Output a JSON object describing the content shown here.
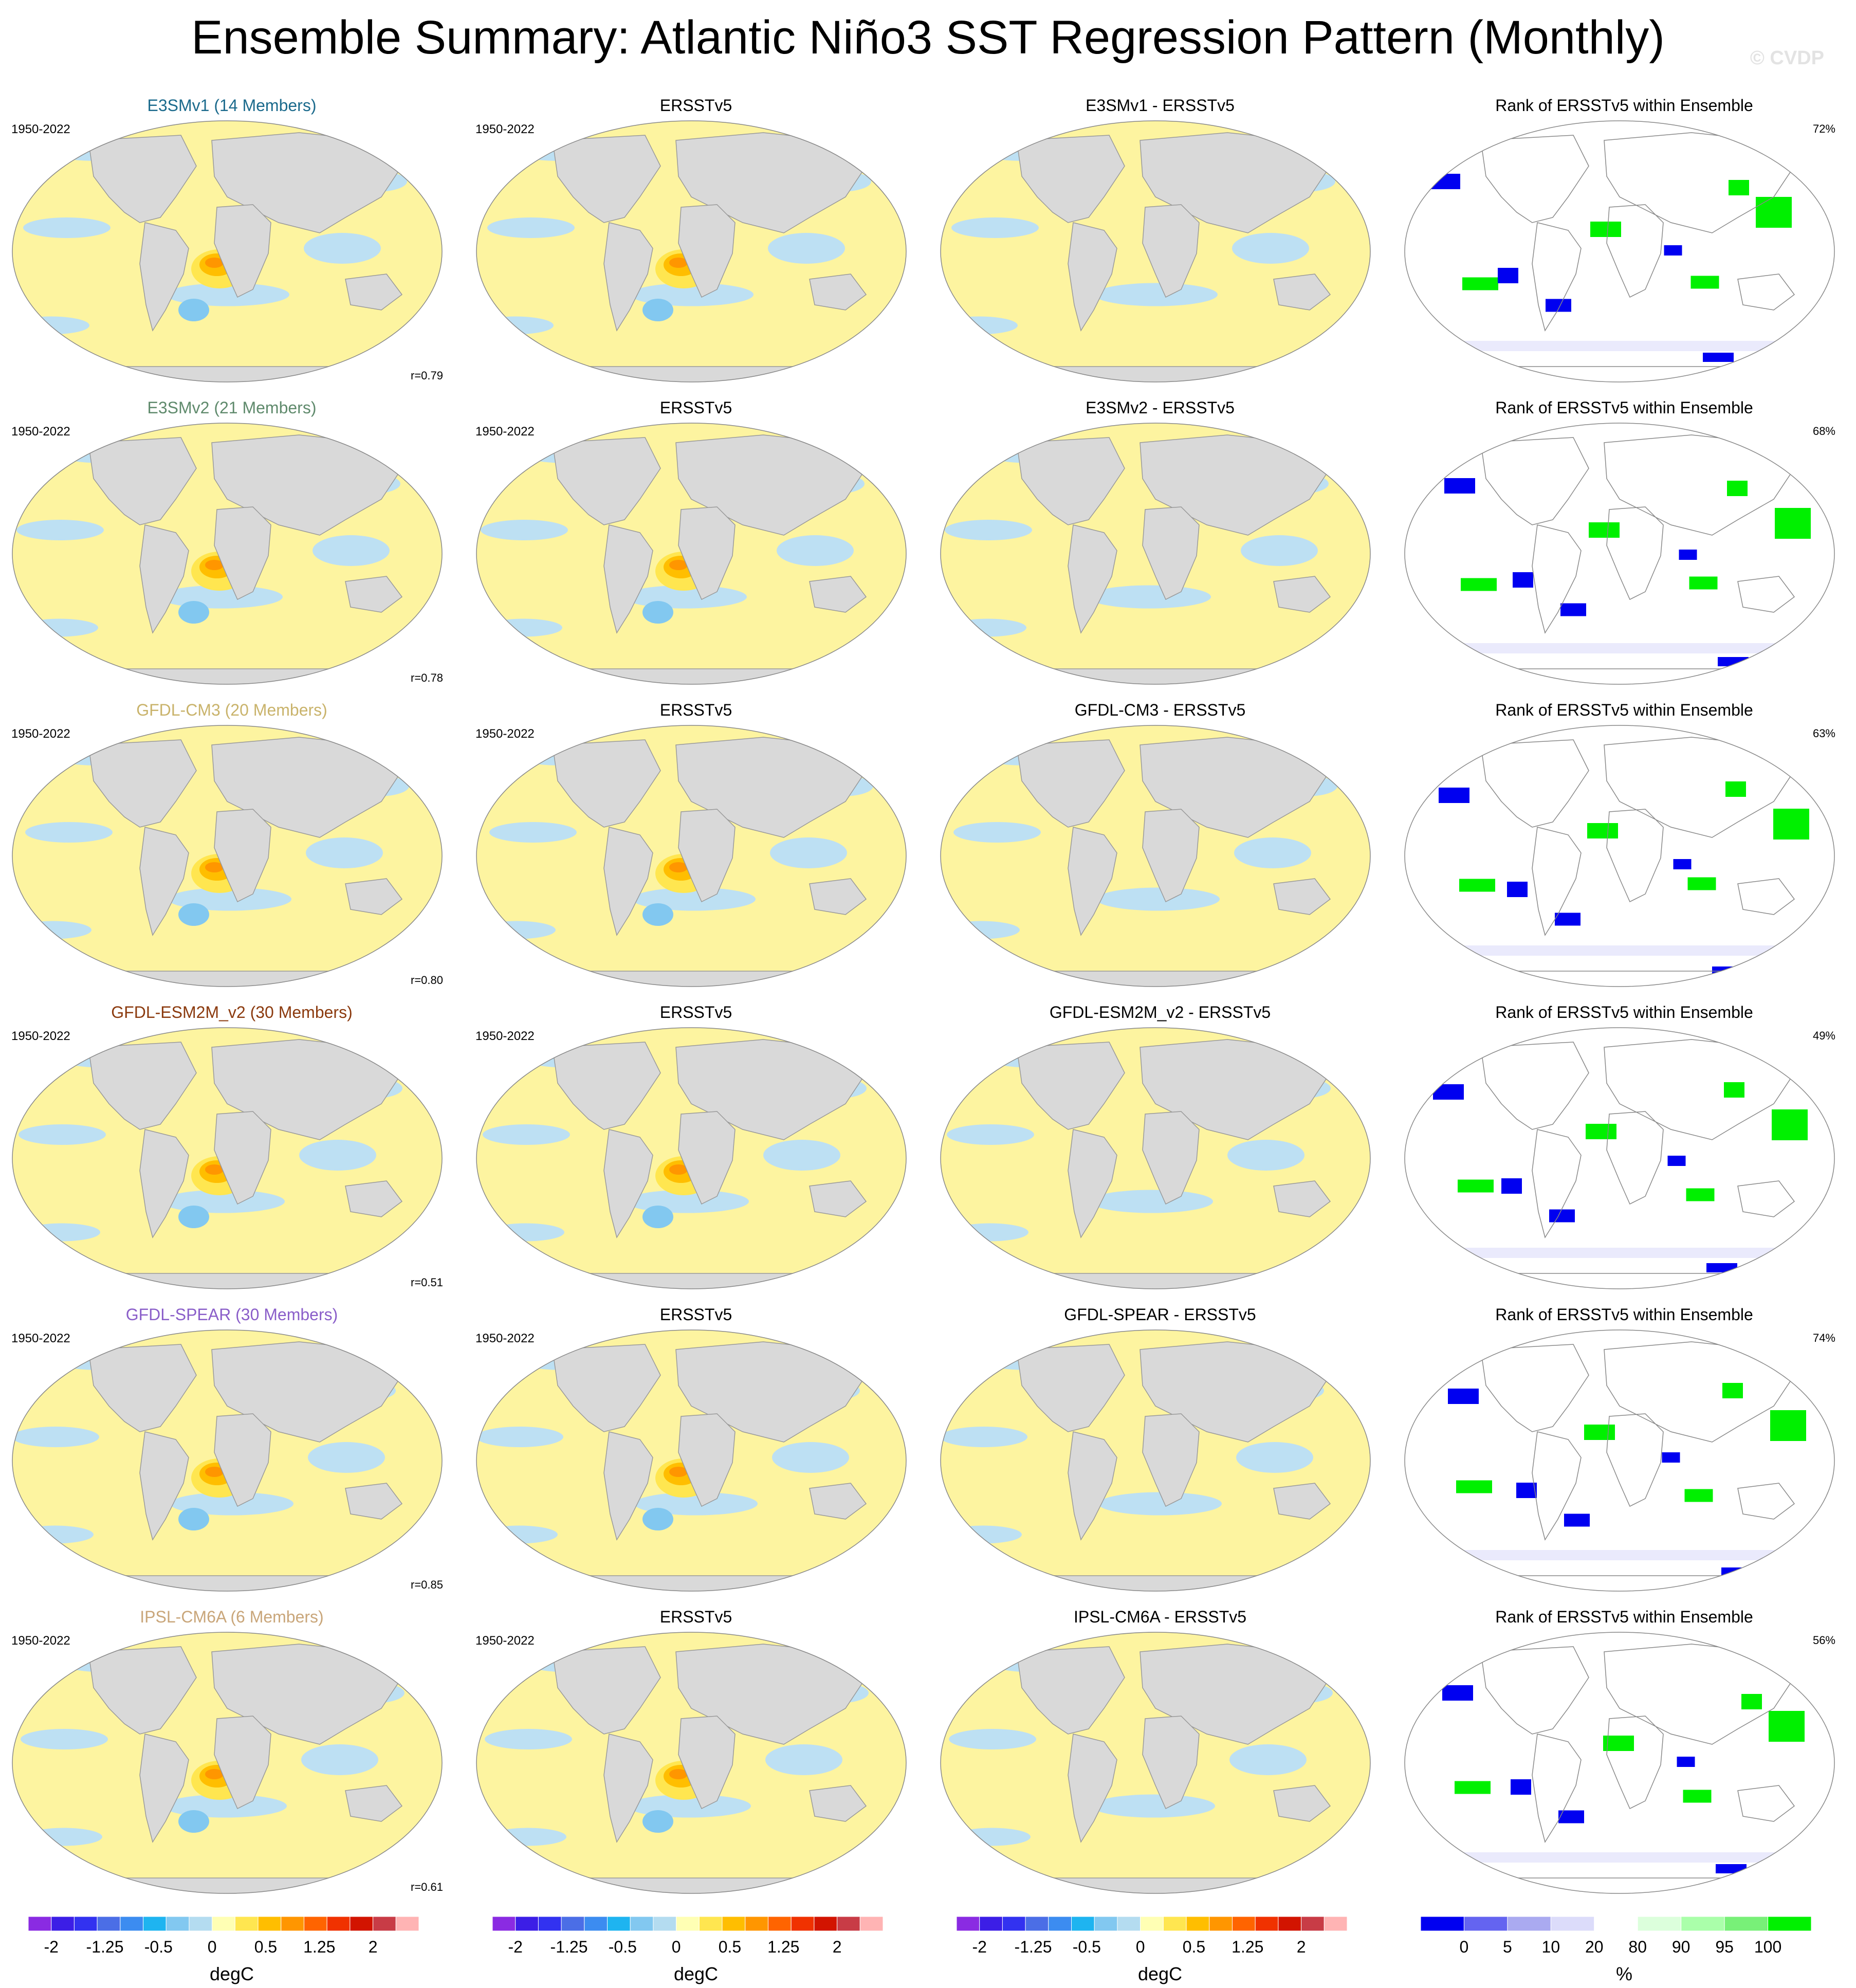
{
  "title": "Ensemble Summary: Atlantic Niño3 SST Regression Pattern (Monthly)",
  "watermark": "© CVDP",
  "colors": {
    "ocean_warm": "#fdf4a0",
    "ocean_cool": "#bde0f3",
    "land": "#d9d9d9",
    "rank_low": "#0000f0",
    "rank_high": "#00f000"
  },
  "rows": [
    {
      "model_title": "E3SMv1 (14 Members)",
      "model_color": "#1b6a8c",
      "years_model": "1950-2022",
      "years_obs": "1950-2022",
      "obs_title": "ERSSTv5",
      "diff_title": "E3SMv1 - ERSSTv5",
      "rank_title": "Rank of ERSSTv5 within Ensemble",
      "rank_pct": "72%",
      "pattern_corr": "r=0.79"
    },
    {
      "model_title": "E3SMv2 (21 Members)",
      "model_color": "#5f8a6c",
      "years_model": "1950-2022",
      "years_obs": "1950-2022",
      "obs_title": "ERSSTv5",
      "diff_title": "E3SMv2 - ERSSTv5",
      "rank_title": "Rank of ERSSTv5 within Ensemble",
      "rank_pct": "68%",
      "pattern_corr": "r=0.78"
    },
    {
      "model_title": "GFDL-CM3 (20 Members)",
      "model_color": "#c9b36b",
      "years_model": "1950-2022",
      "years_obs": "1950-2022",
      "obs_title": "ERSSTv5",
      "diff_title": "GFDL-CM3 - ERSSTv5",
      "rank_title": "Rank of ERSSTv5 within Ensemble",
      "rank_pct": "63%",
      "pattern_corr": "r=0.80"
    },
    {
      "model_title": "GFDL-ESM2M_v2 (30 Members)",
      "model_color": "#8b3a0e",
      "years_model": "1950-2022",
      "years_obs": "1950-2022",
      "obs_title": "ERSSTv5",
      "diff_title": "GFDL-ESM2M_v2 - ERSSTv5",
      "rank_title": "Rank of ERSSTv5 within Ensemble",
      "rank_pct": "49%",
      "pattern_corr": "r=0.51"
    },
    {
      "model_title": "GFDL-SPEAR (30 Members)",
      "model_color": "#8a5ec9",
      "years_model": "1950-2022",
      "years_obs": "1950-2022",
      "obs_title": "ERSSTv5",
      "diff_title": "GFDL-SPEAR - ERSSTv5",
      "rank_title": "Rank of ERSSTv5 within Ensemble",
      "rank_pct": "74%",
      "pattern_corr": "r=0.85"
    },
    {
      "model_title": "IPSL-CM6A (6 Members)",
      "model_color": "#c9a67a",
      "years_model": "1950-2022",
      "years_obs": "1950-2022",
      "obs_title": "ERSSTv5",
      "diff_title": "IPSL-CM6A - ERSSTv5",
      "rank_title": "Rank of ERSSTv5 within Ensemble",
      "rank_pct": "56%",
      "pattern_corr": "r=0.61"
    }
  ],
  "legend_sst": {
    "colors": [
      "#8a2be2",
      "#3c1ee6",
      "#3232f0",
      "#4b6ee6",
      "#3c8cf0",
      "#1eb4f0",
      "#82c8f0",
      "#b4dcf0",
      "#ffffb4",
      "#ffe650",
      "#ffbe00",
      "#ff9600",
      "#ff6400",
      "#f03200",
      "#d21400",
      "#c83c46",
      "#ffb4b4"
    ],
    "tick_labels": [
      "-2",
      "-1.25",
      "-0.5",
      "0",
      "0.5",
      "1.25",
      "2"
    ],
    "label": "degC"
  },
  "legend_rank": {
    "colors": [
      "#0000f0",
      "#6464f0",
      "#aaaaf0",
      "#dcdcfa",
      "#ffffff",
      "#dcffdc",
      "#aaffaa",
      "#78f078",
      "#00f000"
    ],
    "tick_labels": [
      "0",
      "5",
      "10",
      "20",
      "80",
      "90",
      "95",
      "100"
    ],
    "label": "%"
  }
}
